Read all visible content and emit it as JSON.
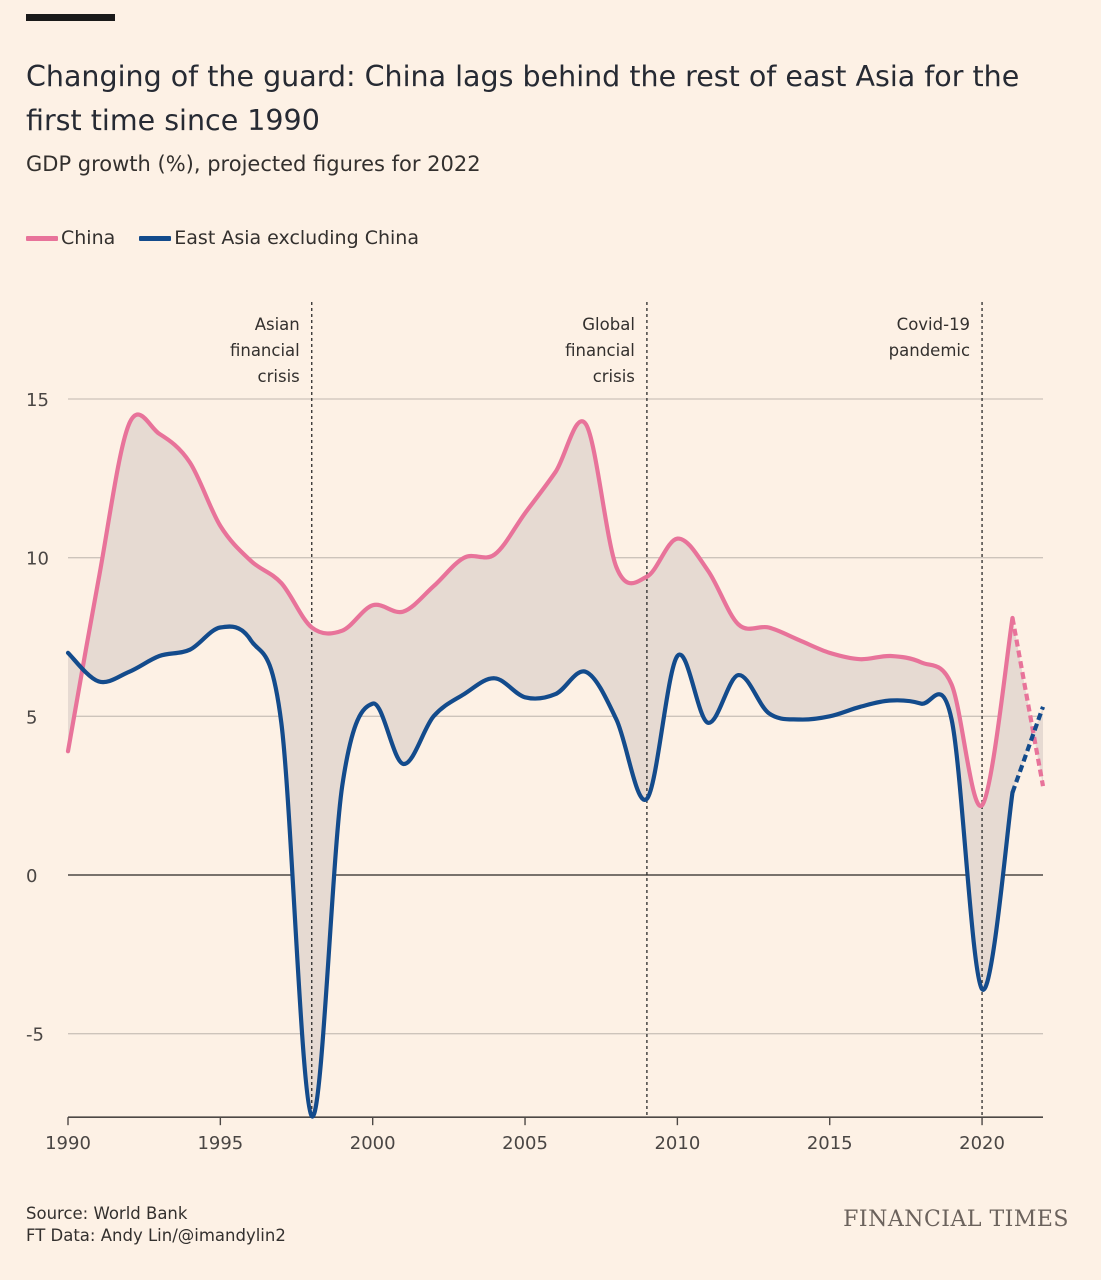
{
  "header": {
    "title": "Changing of the guard: China lags behind the rest of east Asia for the first time since 1990",
    "subtitle": "GDP growth (%), projected figures for 2022"
  },
  "footer": {
    "source": "Source: World Bank",
    "credit": "FT Data: Andy Lin/@imandylin2",
    "brand": "FINANCIAL TIMES"
  },
  "colors": {
    "background": "#fdf1e5",
    "china": "#e8739a",
    "east_asia": "#134b8c",
    "fill": "#e6dad2",
    "grid": "#cdc4bb",
    "zero_line": "#4d4845"
  },
  "chart_data": {
    "type": "line",
    "title": "Changing of the guard: China lags behind the rest of east Asia for the first time since 1990",
    "subtitle": "GDP growth (%), projected figures for 2022",
    "xlim": [
      1990,
      2022
    ],
    "ylim": [
      -7.6,
      15
    ],
    "x_ticks": [
      1990,
      1995,
      2000,
      2005,
      2010,
      2015,
      2020
    ],
    "y_ticks": [
      15,
      10,
      5,
      0,
      -5
    ],
    "y_tick_labels": [
      "15",
      "10",
      "5",
      "0",
      "-5"
    ],
    "grid": true,
    "legend_position": "top-left",
    "projected_from": 2021,
    "x": [
      1990,
      1991,
      1992,
      1993,
      1994,
      1995,
      1996,
      1997,
      1998,
      1999,
      2000,
      2001,
      2002,
      2003,
      2004,
      2005,
      2006,
      2007,
      2008,
      2009,
      2010,
      2011,
      2012,
      2013,
      2014,
      2015,
      2016,
      2017,
      2018,
      2019,
      2020,
      2021,
      2022
    ],
    "series": [
      {
        "name": "China",
        "values": [
          3.9,
          9.3,
          14.2,
          13.9,
          13.0,
          11.0,
          9.9,
          9.2,
          7.8,
          7.7,
          8.5,
          8.3,
          9.1,
          10.0,
          10.1,
          11.4,
          12.7,
          14.2,
          9.7,
          9.4,
          10.6,
          9.6,
          7.9,
          7.8,
          7.4,
          7.0,
          6.8,
          6.9,
          6.7,
          6.0,
          2.2,
          8.1,
          2.8
        ]
      },
      {
        "name": "East Asia excluding China",
        "values": [
          7.0,
          6.1,
          6.4,
          6.9,
          7.1,
          7.8,
          7.4,
          4.8,
          -7.6,
          2.8,
          5.4,
          3.5,
          5.0,
          5.7,
          6.2,
          5.6,
          5.7,
          6.4,
          4.9,
          2.4,
          6.9,
          4.8,
          6.3,
          5.1,
          4.9,
          5.0,
          5.3,
          5.5,
          5.4,
          4.9,
          -3.6,
          2.6,
          5.3
        ]
      }
    ],
    "annotations": [
      {
        "x": 1998,
        "lines": [
          "Asian",
          "financial",
          "crisis"
        ]
      },
      {
        "x": 2009,
        "lines": [
          "Global",
          "financial",
          "crisis"
        ]
      },
      {
        "x": 2020,
        "lines": [
          "Covid-19",
          "pandemic"
        ]
      }
    ]
  }
}
